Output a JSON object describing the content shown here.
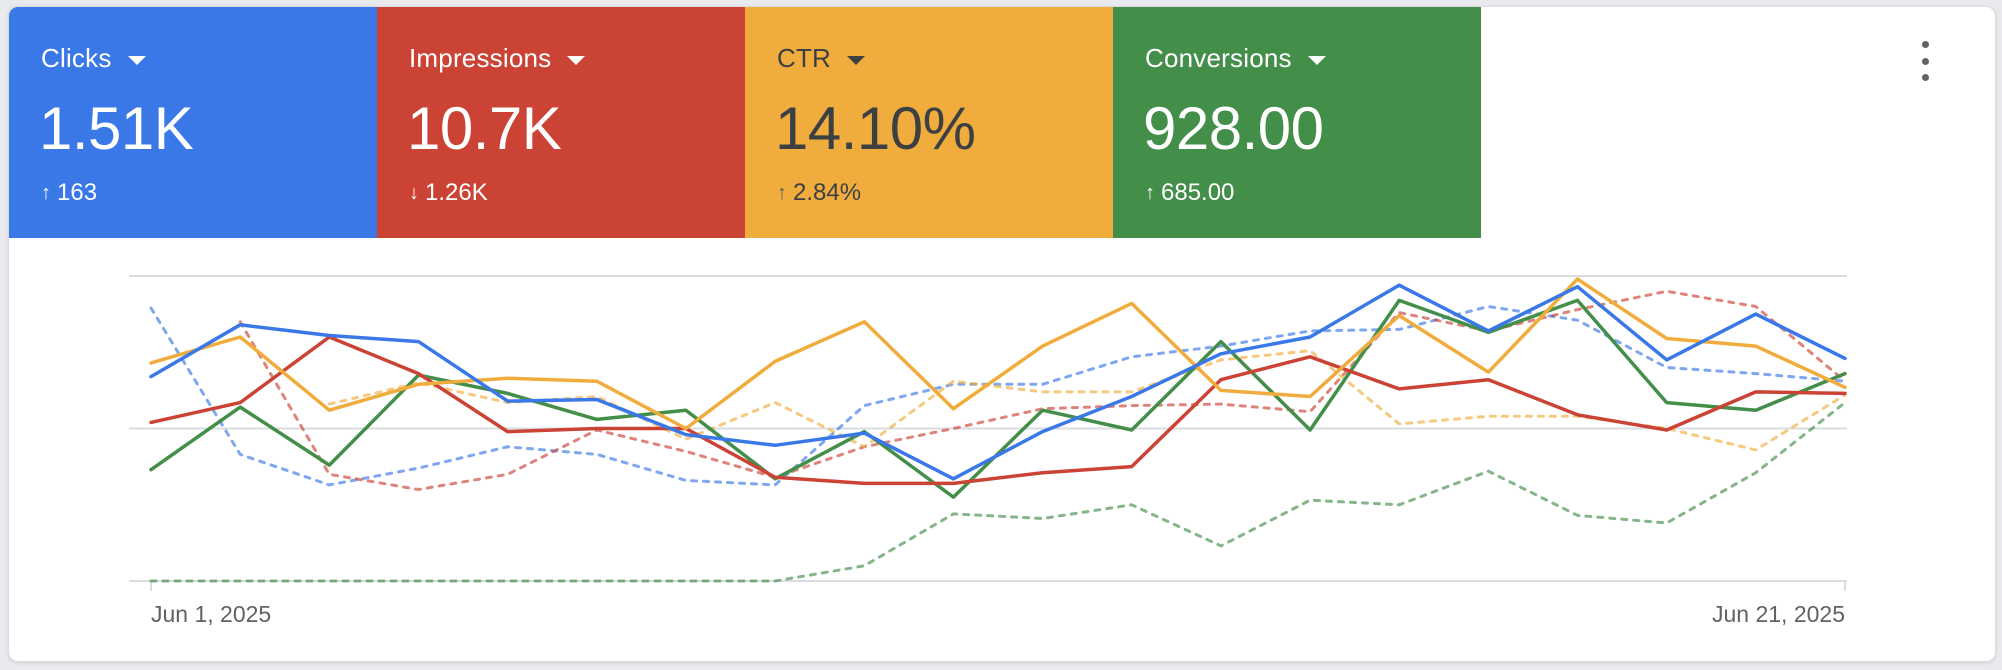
{
  "metrics": [
    {
      "label": "Clicks",
      "value": "1.51K",
      "delta": "163",
      "direction": "up",
      "color": "#3b78e7",
      "text_color": "#ffffff"
    },
    {
      "label": "Impressions",
      "value": "10.7K",
      "delta": "1.26K",
      "direction": "down",
      "color": "#cb4335",
      "text_color": "#ffffff"
    },
    {
      "label": "CTR",
      "value": "14.10%",
      "delta": "2.84%",
      "direction": "up",
      "color": "#f0ac3c",
      "text_color": "#3c4043"
    },
    {
      "label": "Conversions",
      "value": "928.00",
      "delta": "685.00",
      "direction": "up",
      "color": "#438e49",
      "text_color": "#ffffff"
    }
  ],
  "icons": {
    "more": "more-vert-icon",
    "up": "arrow-up-icon",
    "down": "arrow-down-icon",
    "caret": "caret-down-icon"
  },
  "chart_data": {
    "type": "line",
    "x_start_label": "Jun 1, 2025",
    "x_end_label": "Jun 21, 2025",
    "ylim": [
      0,
      2
    ],
    "grid": true,
    "series": [
      {
        "metric": "Clicks",
        "period": "current",
        "color": "#3b78e7",
        "dashed": false,
        "values": [
          1.34,
          1.68,
          1.61,
          1.57,
          1.18,
          1.19,
          0.96,
          0.89,
          0.97,
          0.67,
          0.98,
          1.21,
          1.49,
          1.6,
          1.94,
          1.64,
          1.93,
          1.45,
          1.75,
          1.46
        ]
      },
      {
        "metric": "Clicks",
        "period": "previous",
        "color": "#3b78e7",
        "dashed": true,
        "values": [
          1.79,
          0.83,
          0.63,
          0.74,
          0.88,
          0.83,
          0.66,
          0.63,
          1.15,
          1.29,
          1.29,
          1.47,
          1.54,
          1.64,
          1.65,
          1.8,
          1.71,
          1.4,
          1.36,
          1.31
        ]
      },
      {
        "metric": "Impressions",
        "period": "previous",
        "color": "#cb4335",
        "dashed": true,
        "values": [
          1.7,
          0.7,
          0.6,
          0.7,
          0.99,
          0.85,
          0.68,
          0.88,
          1.0,
          1.13,
          1.15,
          1.16,
          1.11,
          1.76,
          1.64,
          1.78,
          1.9,
          1.8,
          1.31
        ]
      },
      {
        "metric": "Impressions",
        "period": "current",
        "color": "#cb4335",
        "dashed": false,
        "values": [
          1.04,
          1.17,
          1.6,
          1.36,
          0.98,
          1.0,
          1.0,
          0.68,
          0.64,
          0.64,
          0.71,
          0.75,
          1.32,
          1.47,
          1.26,
          1.32,
          1.09,
          0.99,
          1.24,
          1.23
        ]
      },
      {
        "metric": "CTR",
        "period": "current",
        "color": "#f0ac3c",
        "dashed": false,
        "values": [
          1.43,
          1.6,
          1.12,
          1.29,
          1.33,
          1.31,
          1.0,
          1.44,
          1.7,
          1.13,
          1.54,
          1.82,
          1.25,
          1.21,
          1.74,
          1.37,
          1.98,
          1.59,
          1.54,
          1.27
        ]
      },
      {
        "metric": "CTR",
        "period": "previous",
        "color": "#f0ac3c",
        "dashed": true,
        "values": [
          1.16,
          1.3,
          1.17,
          1.21,
          0.93,
          1.17,
          0.88,
          1.31,
          1.24,
          1.24,
          1.45,
          1.51,
          1.03,
          1.08,
          1.08,
          1.0,
          0.86,
          1.22
        ]
      },
      {
        "metric": "Conversions",
        "period": "current",
        "color": "#438e49",
        "dashed": false,
        "values": [
          0.73,
          1.14,
          0.76,
          1.35,
          1.23,
          1.06,
          1.12,
          0.67,
          0.98,
          0.55,
          1.12,
          0.99,
          1.57,
          0.99,
          1.84,
          1.63,
          1.84,
          1.17,
          1.12,
          1.36
        ]
      },
      {
        "metric": "Conversions",
        "period": "previous",
        "color": "#438e49",
        "dashed": true,
        "values": [
          0.0,
          0.0,
          0.0,
          0.0,
          0.0,
          0.0,
          0.0,
          0.0,
          0.1,
          0.44,
          0.41,
          0.5,
          0.23,
          0.53,
          0.5,
          0.72,
          0.43,
          0.38,
          0.71,
          1.17
        ]
      }
    ]
  }
}
